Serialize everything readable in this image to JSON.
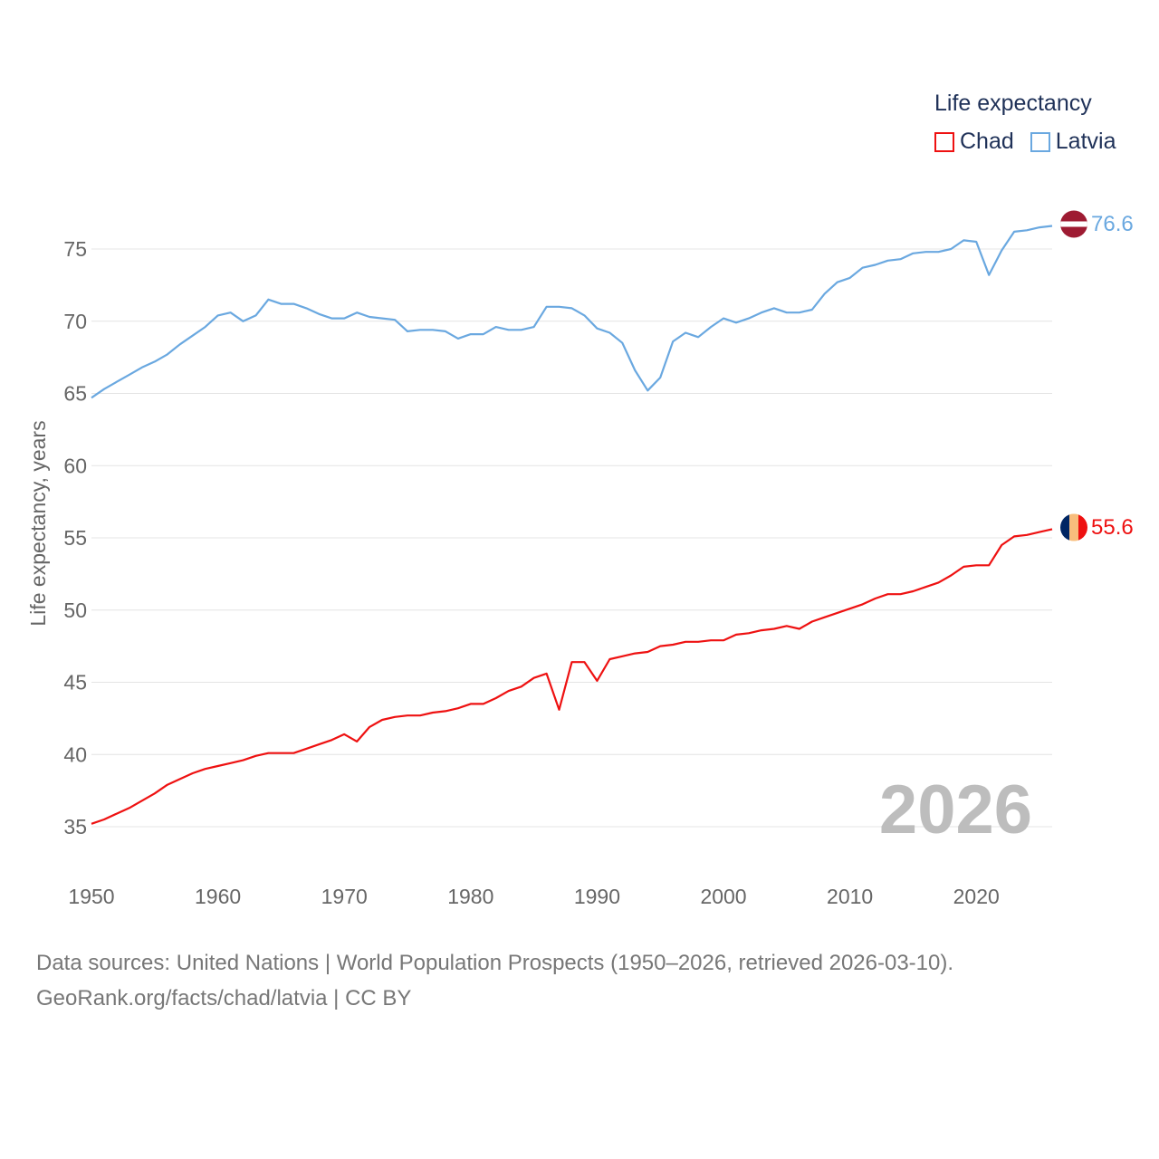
{
  "chart_data": {
    "type": "line",
    "title": "",
    "legend_title": "Life expectancy",
    "ylabel": "Life expectancy, years",
    "xlabel": "",
    "xlim": [
      1950,
      2026
    ],
    "ylim": [
      32,
      78
    ],
    "x_ticks": [
      1950,
      1960,
      1970,
      1980,
      1990,
      2000,
      2010,
      2020
    ],
    "y_ticks": [
      35,
      40,
      45,
      50,
      55,
      60,
      65,
      70,
      75
    ],
    "grid": true,
    "year_watermark": "2026",
    "x": [
      1950,
      1951,
      1952,
      1953,
      1954,
      1955,
      1956,
      1957,
      1958,
      1959,
      1960,
      1961,
      1962,
      1963,
      1964,
      1965,
      1966,
      1967,
      1968,
      1969,
      1970,
      1971,
      1972,
      1973,
      1974,
      1975,
      1976,
      1977,
      1978,
      1979,
      1980,
      1981,
      1982,
      1983,
      1984,
      1985,
      1986,
      1987,
      1988,
      1989,
      1990,
      1991,
      1992,
      1993,
      1994,
      1995,
      1996,
      1997,
      1998,
      1999,
      2000,
      2001,
      2002,
      2003,
      2004,
      2005,
      2006,
      2007,
      2008,
      2009,
      2010,
      2011,
      2012,
      2013,
      2014,
      2015,
      2016,
      2017,
      2018,
      2019,
      2020,
      2021,
      2022,
      2023,
      2024,
      2025,
      2026
    ],
    "series": [
      {
        "name": "Chad",
        "color": "#ee1111",
        "end_label": "55.6",
        "values": [
          35.2,
          35.5,
          35.9,
          36.3,
          36.8,
          37.3,
          37.9,
          38.3,
          38.7,
          39.0,
          39.2,
          39.4,
          39.6,
          39.9,
          40.1,
          40.1,
          40.1,
          40.4,
          40.7,
          41.0,
          41.4,
          40.9,
          41.9,
          42.4,
          42.6,
          42.7,
          42.7,
          42.9,
          43.0,
          43.2,
          43.5,
          43.5,
          43.9,
          44.4,
          44.7,
          45.3,
          45.6,
          43.1,
          46.4,
          46.4,
          45.1,
          46.6,
          46.8,
          47.0,
          47.1,
          47.5,
          47.6,
          47.8,
          47.8,
          47.9,
          47.9,
          48.3,
          48.4,
          48.6,
          48.7,
          48.9,
          48.7,
          49.2,
          49.5,
          49.8,
          50.1,
          50.4,
          50.8,
          51.1,
          51.1,
          51.3,
          51.6,
          51.9,
          52.4,
          53.0,
          53.1,
          53.1,
          54.5,
          55.1,
          55.2,
          55.4,
          55.6
        ]
      },
      {
        "name": "Latvia",
        "color": "#6aa8e0",
        "end_label": "76.6",
        "values": [
          64.7,
          65.3,
          65.8,
          66.3,
          66.8,
          67.2,
          67.7,
          68.4,
          69.0,
          69.6,
          70.4,
          70.6,
          70.0,
          70.4,
          71.5,
          71.2,
          71.2,
          70.9,
          70.5,
          70.2,
          70.2,
          70.6,
          70.3,
          70.2,
          70.1,
          69.3,
          69.4,
          69.4,
          69.3,
          68.8,
          69.1,
          69.1,
          69.6,
          69.4,
          69.4,
          69.6,
          71.0,
          71.0,
          70.9,
          70.4,
          69.5,
          69.2,
          68.5,
          66.6,
          65.2,
          66.1,
          68.6,
          69.2,
          68.9,
          69.6,
          70.2,
          69.9,
          70.2,
          70.6,
          70.9,
          70.6,
          70.6,
          70.8,
          71.9,
          72.7,
          73.0,
          73.7,
          73.9,
          74.2,
          74.3,
          74.7,
          74.8,
          74.8,
          75.0,
          75.6,
          75.5,
          73.2,
          74.9,
          76.2,
          76.3,
          76.5,
          76.6
        ]
      }
    ]
  },
  "source_line1": "Data sources: United Nations | World Population Prospects (1950–2026, retrieved 2026-03-10).",
  "source_line2": "GeoRank.org/facts/chad/latvia | CC BY"
}
